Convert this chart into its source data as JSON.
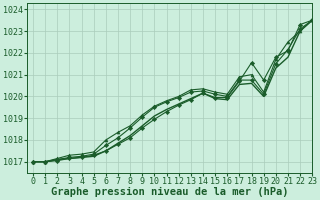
{
  "xlabel": "Graphe pression niveau de la mer (hPa)",
  "background_color": "#cceedd",
  "grid_color": "#aaccbb",
  "line_color": "#1a5c2a",
  "marker_color": "#1a5c2a",
  "xlim": [
    -0.5,
    23
  ],
  "ylim": [
    1016.5,
    1024.3
  ],
  "yticks": [
    1017,
    1018,
    1019,
    1020,
    1021,
    1022,
    1023,
    1024
  ],
  "xticks": [
    0,
    1,
    2,
    3,
    4,
    5,
    6,
    7,
    8,
    9,
    10,
    11,
    12,
    13,
    14,
    15,
    16,
    17,
    18,
    19,
    20,
    21,
    22,
    23
  ],
  "series": [
    {
      "y": [
        1017.0,
        1017.0,
        1017.1,
        1017.15,
        1017.2,
        1017.25,
        1017.5,
        1017.85,
        1018.2,
        1018.65,
        1019.1,
        1019.4,
        1019.65,
        1019.9,
        1020.15,
        1019.9,
        1019.85,
        1020.55,
        1020.6,
        1020.0,
        1021.3,
        1021.8,
        1023.0,
        1023.5
      ],
      "marker": null,
      "lw": 1.0
    },
    {
      "y": [
        1017.0,
        1017.0,
        1017.1,
        1017.2,
        1017.25,
        1017.35,
        1017.75,
        1018.1,
        1018.55,
        1019.05,
        1019.5,
        1019.75,
        1019.95,
        1020.2,
        1020.25,
        1020.1,
        1020.0,
        1020.75,
        1020.75,
        1020.1,
        1021.5,
        1022.15,
        1023.1,
        1023.5
      ],
      "marker": "D",
      "lw": 0.8
    },
    {
      "y": [
        1017.0,
        1017.0,
        1017.15,
        1017.3,
        1017.35,
        1017.45,
        1018.0,
        1018.35,
        1018.65,
        1019.15,
        1019.55,
        1019.8,
        1020.0,
        1020.3,
        1020.35,
        1020.2,
        1020.1,
        1020.9,
        1021.0,
        1020.2,
        1021.7,
        1022.5,
        1023.0,
        1023.5
      ],
      "marker": "^",
      "lw": 0.8
    },
    {
      "y": [
        1017.0,
        1017.0,
        1017.05,
        1017.15,
        1017.2,
        1017.3,
        1017.5,
        1017.8,
        1018.1,
        1018.55,
        1018.95,
        1019.3,
        1019.6,
        1019.85,
        1020.15,
        1019.95,
        1019.95,
        1020.7,
        1021.55,
        1020.75,
        1021.8,
        1022.1,
        1023.3,
        1023.5
      ],
      "marker": "D",
      "lw": 0.8
    }
  ],
  "xlabel_fontsize": 7.5,
  "tick_fontsize": 6.0
}
